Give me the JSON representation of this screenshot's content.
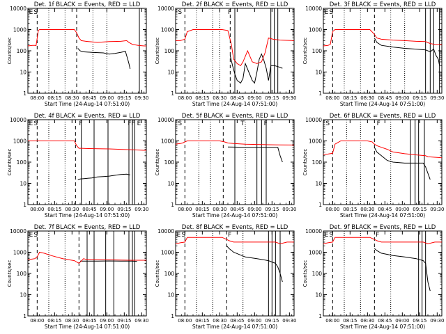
{
  "figure": {
    "xlabel": "Start Time (24-Aug-14 07:51:00)",
    "ylabel": "Counts/sec",
    "x_tick_labels": [
      "08:00",
      "08:15",
      "08:30",
      "08:45",
      "09:00",
      "09:15",
      "09:30"
    ],
    "y_tick_labels": [
      "1",
      "10",
      "100",
      "1000",
      "10000"
    ],
    "colors": {
      "events": "#000000",
      "lld": "#ff0000",
      "background": "#ffffff"
    }
  },
  "chart_data": [
    {
      "type": "line",
      "title": "Det. 1f BLACK = Events, RED = LLD",
      "xlabel": "Start Time (24-Aug-14 07:51:00)",
      "ylabel": "Counts/sec",
      "x_unit": "minutes after 07:51:00",
      "xlim": [
        0,
        102
      ],
      "ylim": [
        1,
        10000
      ],
      "yscale": "log",
      "markers": {
        "dashed": [
          8,
          42
        ],
        "solid": [
          96
        ],
        "dotted": [
          18,
          32,
          56,
          68
        ]
      },
      "letters": [
        {
          "text": "E",
          "x": 1
        },
        {
          "text": "S",
          "x": 5
        }
      ],
      "series": [
        {
          "color": "#000000",
          "x": [
            43,
            45,
            47,
            55,
            65,
            70,
            75,
            80,
            84,
            85,
            86,
            87,
            88
          ],
          "y": [
            130,
            100,
            90,
            85,
            80,
            70,
            75,
            85,
            95,
            60,
            40,
            25,
            14
          ]
        },
        {
          "color": "#ff0000",
          "x": [
            0,
            4,
            6,
            7,
            9,
            10,
            14,
            20,
            30,
            40,
            42,
            44,
            46,
            50,
            60,
            70,
            80,
            85,
            87,
            90,
            95,
            100,
            102
          ],
          "y": [
            170,
            180,
            180,
            175,
            900,
            1000,
            1000,
            1000,
            1000,
            1000,
            700,
            400,
            300,
            280,
            250,
            270,
            280,
            300,
            250,
            200,
            180,
            170,
            170
          ]
        }
      ]
    },
    {
      "type": "line",
      "title": "Det. 2f BLACK = Events, RED = LLD",
      "xlabel": "Start Time (24-Aug-14 07:51:00)",
      "ylabel": "Counts/sec",
      "x_unit": "minutes after 07:51:00",
      "xlim": [
        0,
        102
      ],
      "ylim": [
        1,
        10000
      ],
      "yscale": "log",
      "markers": {
        "dashed": [
          8,
          47
        ],
        "solid": [
          51,
          82,
          85,
          88
        ],
        "dotted": [
          18,
          32,
          38
        ]
      },
      "letters": [
        {
          "text": "S",
          "x": 2
        },
        {
          "text": "F",
          "x": 45
        }
      ],
      "series": [
        {
          "color": "#000000",
          "x": [
            47,
            49,
            51,
            53,
            56,
            58,
            60,
            63,
            66,
            68,
            70,
            72,
            74,
            76,
            78,
            80,
            82,
            85,
            88,
            92
          ],
          "y": [
            60,
            20,
            8,
            4,
            3,
            5,
            25,
            10,
            4,
            3,
            10,
            40,
            70,
            35,
            15,
            4,
            20,
            20,
            18,
            15
          ]
        },
        {
          "color": "#ff0000",
          "x": [
            0,
            4,
            8,
            10,
            15,
            25,
            35,
            40,
            45,
            48,
            50,
            53,
            56,
            58,
            62,
            66,
            70,
            74,
            77,
            80,
            84,
            90,
            96,
            102
          ],
          "y": [
            300,
            300,
            350,
            800,
            1000,
            1000,
            1000,
            1000,
            900,
            200,
            40,
            25,
            20,
            30,
            100,
            30,
            25,
            30,
            80,
            400,
            350,
            320,
            310,
            300
          ]
        }
      ]
    },
    {
      "type": "line",
      "title": "Det. 3f BLACK = Events, RED = LLD",
      "xlabel": "Start Time (24-Aug-14 07:51:00)",
      "ylabel": "Counts/sec",
      "x_unit": "minutes after 07:51:00",
      "xlim": [
        0,
        102
      ],
      "ylim": [
        1,
        10000
      ],
      "yscale": "log",
      "markers": {
        "dashed": [
          8,
          44
        ],
        "solid": [
          88,
          92,
          95,
          100
        ],
        "dotted": [
          18,
          32,
          58,
          70
        ]
      },
      "letters": [
        {
          "text": "E",
          "x": 1
        },
        {
          "text": "S",
          "x": 5
        }
      ],
      "series": [
        {
          "color": "#000000",
          "x": [
            44,
            46,
            50,
            60,
            70,
            80,
            88,
            92,
            95,
            97,
            99,
            100
          ],
          "y": [
            400,
            250,
            180,
            150,
            130,
            120,
            110,
            90,
            120,
            60,
            40,
            20
          ]
        },
        {
          "color": "#ff0000",
          "x": [
            0,
            4,
            6,
            8,
            10,
            20,
            30,
            40,
            44,
            46,
            50,
            60,
            70,
            80,
            88,
            92,
            96,
            102
          ],
          "y": [
            170,
            180,
            200,
            800,
            1000,
            1000,
            1000,
            1000,
            600,
            400,
            350,
            320,
            300,
            280,
            270,
            220,
            200,
            190
          ]
        }
      ]
    },
    {
      "type": "line",
      "title": "Det. 4f BLACK = Events, RED = LLD",
      "xlabel": "Start Time (24-Aug-14 07:51:00)",
      "ylabel": "Counts/sec",
      "x_unit": "minutes after 07:51:00",
      "xlim": [
        0,
        102
      ],
      "ylim": [
        1,
        10000
      ],
      "yscale": "log",
      "markers": {
        "dashed": [
          8,
          41
        ],
        "solid": [
          46,
          57,
          69,
          87,
          90,
          92
        ],
        "dotted": [
          18,
          32
        ]
      },
      "letters": [
        {
          "text": "E",
          "x": 1
        },
        {
          "text": "S",
          "x": 5
        },
        {
          "text": "F",
          "x": 44
        },
        {
          "text": "F",
          "x": 86
        },
        {
          "text": "F",
          "x": 89
        },
        {
          "text": "E",
          "x": 94
        }
      ],
      "series": [
        {
          "color": "#000000",
          "x": [
            43,
            45,
            50,
            55,
            60,
            65,
            70,
            75,
            80,
            85,
            88
          ],
          "y": [
            15,
            16,
            17,
            18,
            20,
            21,
            22,
            24,
            26,
            27,
            25
          ]
        },
        {
          "color": "#ff0000",
          "x": [
            0,
            4,
            8,
            10,
            20,
            30,
            40,
            42,
            44,
            46,
            50,
            60,
            70,
            80,
            90,
            100,
            102
          ],
          "y": [
            1000,
            1000,
            1000,
            1000,
            1000,
            1000,
            1000,
            600,
            450,
            450,
            440,
            430,
            420,
            400,
            380,
            360,
            360
          ]
        }
      ]
    },
    {
      "type": "line",
      "title": "Det. 5f BLACK = Events, RED = LLD",
      "xlabel": "Start Time (24-Aug-14 07:51:00)",
      "ylabel": "Counts/sec",
      "x_unit": "minutes after 07:51:00",
      "xlim": [
        0,
        102
      ],
      "ylim": [
        1,
        10000
      ],
      "yscale": "log",
      "markers": {
        "dashed": [
          8,
          41
        ],
        "solid": [
          51,
          70,
          74,
          78
        ],
        "dotted": [
          20,
          30,
          60
        ]
      },
      "letters": [
        {
          "text": "S",
          "x": 2
        },
        {
          "text": "T",
          "x": 56
        },
        {
          "text": "F",
          "x": 76
        }
      ],
      "series": [
        {
          "color": "#000000",
          "x": [
            45,
            50,
            60,
            70,
            80,
            85,
            88,
            90,
            92
          ],
          "y": [
            520,
            510,
            500,
            500,
            500,
            500,
            490,
            200,
            100
          ]
        },
        {
          "color": "#ff0000",
          "x": [
            0,
            4,
            6,
            8,
            10,
            20,
            30,
            38,
            42,
            45,
            50,
            60,
            70,
            80,
            90,
            102
          ],
          "y": [
            700,
            750,
            800,
            900,
            1000,
            1000,
            1000,
            1000,
            900,
            800,
            750,
            700,
            680,
            660,
            650,
            640
          ]
        }
      ]
    },
    {
      "type": "line",
      "title": "Det. 6f BLACK = Events, RED = LLD",
      "xlabel": "Start Time (24-Aug-14 07:51:00)",
      "ylabel": "Counts/sec",
      "x_unit": "minutes after 07:51:00",
      "xlim": [
        0,
        102
      ],
      "ylim": [
        1,
        10000
      ],
      "yscale": "log",
      "markers": {
        "dashed": [
          8,
          44
        ],
        "solid": [
          75,
          79,
          82,
          87
        ],
        "dotted": [
          20,
          32,
          58
        ]
      },
      "letters": [
        {
          "text": "S",
          "x": 2
        },
        {
          "text": "F",
          "x": 46
        }
      ],
      "series": [
        {
          "color": "#000000",
          "x": [
            44,
            46,
            50,
            55,
            60,
            70,
            80,
            86,
            88,
            90,
            92
          ],
          "y": [
            500,
            300,
            200,
            120,
            100,
            90,
            90,
            90,
            60,
            30,
            15
          ]
        },
        {
          "color": "#ff0000",
          "x": [
            0,
            4,
            8,
            10,
            15,
            20,
            30,
            38,
            42,
            44,
            46,
            50,
            55,
            60,
            70,
            80,
            88,
            90,
            96,
            102
          ],
          "y": [
            230,
            240,
            260,
            700,
            1000,
            1000,
            1000,
            1000,
            900,
            700,
            600,
            500,
            400,
            300,
            250,
            220,
            200,
            180,
            170,
            160
          ]
        }
      ]
    },
    {
      "type": "line",
      "title": "Det. 7f BLACK = Events, RED = LLD",
      "xlabel": "Start Time (24-Aug-14 07:51:00)",
      "ylabel": "Counts/sec",
      "x_unit": "minutes after 07:51:00",
      "xlim": [
        0,
        102
      ],
      "ylim": [
        1,
        10000
      ],
      "yscale": "log",
      "markers": {
        "dashed": [
          8,
          44
        ],
        "solid": [
          51,
          57,
          67,
          74,
          87,
          90,
          92
        ],
        "dotted": [
          18,
          32
        ]
      },
      "letters": [
        {
          "text": "E",
          "x": 1
        },
        {
          "text": "S",
          "x": 5
        }
      ],
      "series": [
        {
          "color": "#000000",
          "x": [
            45,
            50,
            60,
            70,
            80,
            90,
            94
          ],
          "y": [
            380,
            380,
            380,
            390,
            380,
            380,
            370
          ]
        },
        {
          "color": "#ff0000",
          "x": [
            0,
            4,
            6,
            8,
            10,
            14,
            20,
            30,
            40,
            44,
            48,
            50,
            60,
            70,
            80,
            90,
            100,
            102
          ],
          "y": [
            450,
            480,
            500,
            600,
            1000,
            900,
            700,
            500,
            400,
            300,
            500,
            460,
            450,
            440,
            430,
            420,
            420,
            420
          ]
        }
      ]
    },
    {
      "type": "line",
      "title": "Det. 8f BLACK = Events, RED = LLD",
      "xlabel": "Start Time (24-Aug-14 07:51:00)",
      "ylabel": "Counts/sec",
      "x_unit": "minutes after 07:51:00",
      "xlim": [
        0,
        102
      ],
      "ylim": [
        1,
        10000
      ],
      "yscale": "log",
      "markers": {
        "dashed": [
          8,
          44
        ],
        "solid": [
          80,
          83,
          86,
          90
        ],
        "dotted": [
          18,
          32,
          58
        ]
      },
      "letters": [
        {
          "text": "E",
          "x": 1
        },
        {
          "text": "S",
          "x": 5
        },
        {
          "text": "F",
          "x": 45
        }
      ],
      "series": [
        {
          "color": "#000000",
          "x": [
            44,
            46,
            50,
            60,
            70,
            80,
            86,
            88,
            90,
            92
          ],
          "y": [
            2000,
            1500,
            1000,
            600,
            500,
            400,
            300,
            200,
            100,
            40
          ]
        },
        {
          "color": "#ff0000",
          "x": [
            0,
            4,
            8,
            10,
            20,
            30,
            40,
            44,
            46,
            50,
            60,
            70,
            80,
            86,
            90,
            96,
            102
          ],
          "y": [
            2500,
            2800,
            3000,
            5000,
            5000,
            5000,
            5000,
            4000,
            3500,
            3000,
            3000,
            3000,
            3000,
            3000,
            2500,
            3000,
            3000
          ]
        }
      ]
    },
    {
      "type": "line",
      "title": "Det. 9f BLACK = Events, RED = LLD",
      "xlabel": "Start Time (24-Aug-14 07:51:00)",
      "ylabel": "Counts/sec",
      "x_unit": "minutes after 07:51:00",
      "xlim": [
        0,
        102
      ],
      "ylim": [
        1,
        10000
      ],
      "yscale": "log",
      "markers": {
        "dashed": [
          8,
          44
        ],
        "solid": [
          82,
          85,
          88
        ],
        "dotted": [
          18,
          32,
          58
        ]
      },
      "letters": [
        {
          "text": "E",
          "x": 1
        },
        {
          "text": "S",
          "x": 5
        },
        {
          "text": "F",
          "x": 45
        }
      ],
      "series": [
        {
          "color": "#000000",
          "x": [
            44,
            46,
            50,
            60,
            70,
            80,
            86,
            88,
            90,
            92
          ],
          "y": [
            1500,
            1200,
            900,
            700,
            600,
            500,
            400,
            300,
            40,
            15
          ]
        },
        {
          "color": "#ff0000",
          "x": [
            0,
            4,
            8,
            10,
            20,
            30,
            40,
            44,
            46,
            50,
            60,
            70,
            80,
            86,
            90,
            96,
            102
          ],
          "y": [
            2500,
            2800,
            3000,
            5000,
            5000,
            5000,
            5000,
            4000,
            3500,
            3000,
            3000,
            3000,
            3000,
            3000,
            2500,
            3000,
            3000
          ]
        }
      ]
    }
  ]
}
